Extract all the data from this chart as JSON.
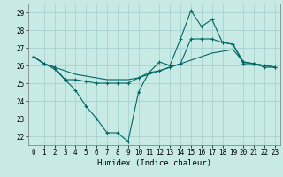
{
  "xlabel": "Humidex (Indice chaleur)",
  "ylabel": "",
  "background_color": "#c8eae4",
  "grid_color": "#a0cccc",
  "line_color": "#006666",
  "x_values": [
    0,
    1,
    2,
    3,
    4,
    5,
    6,
    7,
    8,
    9,
    10,
    11,
    12,
    13,
    14,
    15,
    16,
    17,
    18,
    19,
    20,
    21,
    22,
    23
  ],
  "line_zigzag": [
    26.5,
    26.1,
    25.8,
    25.2,
    24.6,
    23.7,
    23.0,
    22.2,
    22.2,
    21.7,
    24.5,
    25.6,
    26.2,
    26.0,
    27.5,
    29.1,
    28.2,
    28.6,
    27.3,
    27.2,
    26.1,
    26.1,
    25.9,
    25.9
  ],
  "line_mid": [
    26.5,
    26.1,
    25.9,
    25.2,
    25.2,
    25.1,
    25.0,
    25.0,
    25.0,
    25.0,
    25.3,
    25.6,
    25.7,
    25.9,
    26.1,
    27.5,
    27.5,
    27.5,
    27.3,
    27.2,
    26.2,
    26.1,
    26.0,
    25.9
  ],
  "line_flat": [
    26.5,
    26.1,
    25.9,
    25.7,
    25.5,
    25.4,
    25.3,
    25.2,
    25.2,
    25.2,
    25.3,
    25.5,
    25.7,
    25.9,
    26.1,
    26.3,
    26.5,
    26.7,
    26.8,
    26.9,
    26.2,
    26.1,
    26.0,
    25.9
  ],
  "ylim": [
    21.5,
    29.5
  ],
  "yticks": [
    22,
    23,
    24,
    25,
    26,
    27,
    28,
    29
  ],
  "xlim": [
    -0.5,
    23.5
  ],
  "xticks": [
    0,
    1,
    2,
    3,
    4,
    5,
    6,
    7,
    8,
    9,
    10,
    11,
    12,
    13,
    14,
    15,
    16,
    17,
    18,
    19,
    20,
    21,
    22,
    23
  ],
  "tick_fontsize": 5.5,
  "xlabel_fontsize": 6.5
}
